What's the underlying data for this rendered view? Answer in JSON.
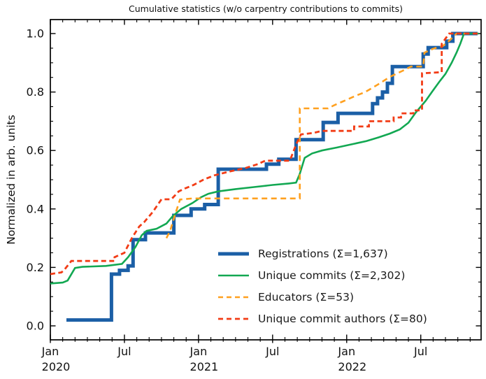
{
  "title": "Cumulative statistics (w/o carpentry contributions to commits)",
  "ylabel": "Normalized in arb. units",
  "legend": {
    "items": [
      {
        "id": "registrations",
        "label": "Registrations  (Σ=1,637)",
        "color": "#1b5fa6",
        "width": 5,
        "dash": ""
      },
      {
        "id": "unique-commits",
        "label": "Unique commits (Σ=2,302)",
        "color": "#12a852",
        "width": 2.6,
        "dash": ""
      },
      {
        "id": "educators",
        "label": "Educators (Σ=53)",
        "color": "#ffa01f",
        "width": 2.6,
        "dash": "7 5"
      },
      {
        "id": "unique-commit-authors",
        "label": "Unique commit authors (Σ=80)",
        "color": "#f23c16",
        "width": 2.8,
        "dash": "7 5"
      }
    ]
  },
  "chart_data": {
    "type": "line",
    "title": "Cumulative statistics (w/o carpentry contributions to commits)",
    "xlabel": "",
    "ylabel": "Normalized in arb. units",
    "x_unit": "months since 2020-01-01",
    "xlim": [
      0,
      34.9
    ],
    "ylim": [
      0,
      1.0
    ],
    "grid": false,
    "legend_position": "lower right inside",
    "x_major_ticks": [
      {
        "m": 0,
        "label": "Jan",
        "year": "2020"
      },
      {
        "m": 6,
        "label": "Jul",
        "year": ""
      },
      {
        "m": 12,
        "label": "Jan",
        "year": "2021"
      },
      {
        "m": 18,
        "label": "Jul",
        "year": ""
      },
      {
        "m": 24,
        "label": "Jan",
        "year": "2022"
      },
      {
        "m": 30,
        "label": "Jul",
        "year": ""
      }
    ],
    "x_minor_step": 1,
    "y_major_ticks": [
      0.0,
      0.2,
      0.4,
      0.6,
      0.8,
      1.0
    ],
    "y_minor_step": 0.05,
    "series": [
      {
        "id": "registrations",
        "name": "Registrations  (Σ=1,637)",
        "total": "1,637",
        "color": "#1b5fa6",
        "width": 5,
        "dash": "",
        "points": [
          [
            1.3,
            0.02
          ],
          [
            4.95,
            0.02
          ],
          [
            4.95,
            0.177
          ],
          [
            5.6,
            0.177
          ],
          [
            5.6,
            0.19
          ],
          [
            6.3,
            0.19
          ],
          [
            6.3,
            0.205
          ],
          [
            6.7,
            0.205
          ],
          [
            6.7,
            0.295
          ],
          [
            7.7,
            0.295
          ],
          [
            7.7,
            0.318
          ],
          [
            10.0,
            0.318
          ],
          [
            10.0,
            0.378
          ],
          [
            11.4,
            0.378
          ],
          [
            11.4,
            0.4
          ],
          [
            12.5,
            0.4
          ],
          [
            12.5,
            0.415
          ],
          [
            13.6,
            0.415
          ],
          [
            13.6,
            0.536
          ],
          [
            17.5,
            0.536
          ],
          [
            17.5,
            0.553
          ],
          [
            18.5,
            0.553
          ],
          [
            18.5,
            0.57
          ],
          [
            19.9,
            0.57
          ],
          [
            19.9,
            0.637
          ],
          [
            22.1,
            0.637
          ],
          [
            22.1,
            0.696
          ],
          [
            23.3,
            0.696
          ],
          [
            23.3,
            0.727
          ],
          [
            26.1,
            0.727
          ],
          [
            26.1,
            0.76
          ],
          [
            26.5,
            0.76
          ],
          [
            26.5,
            0.78
          ],
          [
            26.9,
            0.78
          ],
          [
            26.9,
            0.8
          ],
          [
            27.3,
            0.8
          ],
          [
            27.3,
            0.83
          ],
          [
            27.7,
            0.83
          ],
          [
            27.7,
            0.887
          ],
          [
            30.2,
            0.887
          ],
          [
            30.2,
            0.93
          ],
          [
            30.6,
            0.93
          ],
          [
            30.6,
            0.952
          ],
          [
            32.1,
            0.952
          ],
          [
            32.1,
            0.974
          ],
          [
            32.6,
            0.974
          ],
          [
            32.6,
            1.0
          ],
          [
            34.6,
            1.0
          ]
        ]
      },
      {
        "id": "unique-commits",
        "name": "Unique commits (Σ=2,302)",
        "total": "2,302",
        "color": "#12a852",
        "width": 2.6,
        "dash": "",
        "points": [
          [
            0,
            0.145
          ],
          [
            1.0,
            0.148
          ],
          [
            1.4,
            0.155
          ],
          [
            2.0,
            0.198
          ],
          [
            2.6,
            0.202
          ],
          [
            4.5,
            0.205
          ],
          [
            5.8,
            0.212
          ],
          [
            6.3,
            0.235
          ],
          [
            6.9,
            0.27
          ],
          [
            7.4,
            0.31
          ],
          [
            7.8,
            0.325
          ],
          [
            8.6,
            0.332
          ],
          [
            9.4,
            0.35
          ],
          [
            9.9,
            0.375
          ],
          [
            10.6,
            0.4
          ],
          [
            11.5,
            0.42
          ],
          [
            12.2,
            0.44
          ],
          [
            12.8,
            0.452
          ],
          [
            13.6,
            0.46
          ],
          [
            15.0,
            0.468
          ],
          [
            16.5,
            0.475
          ],
          [
            18.0,
            0.482
          ],
          [
            19.3,
            0.487
          ],
          [
            19.9,
            0.49
          ],
          [
            20.2,
            0.52
          ],
          [
            20.6,
            0.575
          ],
          [
            21.2,
            0.59
          ],
          [
            22.0,
            0.6
          ],
          [
            23.2,
            0.61
          ],
          [
            24.5,
            0.622
          ],
          [
            25.6,
            0.632
          ],
          [
            26.6,
            0.645
          ],
          [
            27.5,
            0.658
          ],
          [
            28.3,
            0.672
          ],
          [
            29.0,
            0.695
          ],
          [
            29.6,
            0.73
          ],
          [
            30.0,
            0.75
          ],
          [
            30.4,
            0.77
          ],
          [
            30.9,
            0.8
          ],
          [
            31.5,
            0.835
          ],
          [
            32.0,
            0.862
          ],
          [
            32.5,
            0.9
          ],
          [
            32.9,
            0.935
          ],
          [
            33.2,
            0.965
          ],
          [
            33.5,
            1.0
          ],
          [
            34.7,
            1.0
          ]
        ]
      },
      {
        "id": "educators",
        "name": "Educators (Σ=53)",
        "total": "53",
        "color": "#ffa01f",
        "width": 2.6,
        "dash": "8 5.5",
        "points": [
          [
            9.4,
            0.3
          ],
          [
            9.7,
            0.325
          ],
          [
            10.1,
            0.38
          ],
          [
            10.5,
            0.432
          ],
          [
            11.5,
            0.436
          ],
          [
            20.2,
            0.436
          ],
          [
            20.2,
            0.744
          ],
          [
            22.5,
            0.744
          ],
          [
            23.0,
            0.755
          ],
          [
            23.7,
            0.768
          ],
          [
            24.6,
            0.785
          ],
          [
            25.5,
            0.8
          ],
          [
            26.5,
            0.825
          ],
          [
            27.5,
            0.852
          ],
          [
            28.5,
            0.872
          ],
          [
            29.2,
            0.887
          ],
          [
            30.2,
            0.887
          ],
          [
            30.3,
            0.935
          ],
          [
            31.0,
            0.948
          ],
          [
            31.8,
            0.958
          ],
          [
            32.3,
            0.975
          ],
          [
            32.9,
            1.0
          ],
          [
            34.6,
            1.0
          ]
        ]
      },
      {
        "id": "unique-commit-authors",
        "name": "Unique commit authors (Σ=80)",
        "total": "80",
        "color": "#f23c16",
        "width": 2.8,
        "dash": "7 4.5",
        "points": [
          [
            0,
            0.177
          ],
          [
            0.9,
            0.183
          ],
          [
            1.1,
            0.19
          ],
          [
            1.7,
            0.222
          ],
          [
            5.2,
            0.222
          ],
          [
            5.2,
            0.235
          ],
          [
            6.0,
            0.25
          ],
          [
            6.6,
            0.3
          ],
          [
            7.2,
            0.34
          ],
          [
            7.6,
            0.355
          ],
          [
            8.3,
            0.39
          ],
          [
            9.0,
            0.433
          ],
          [
            9.8,
            0.433
          ],
          [
            10.4,
            0.46
          ],
          [
            10.9,
            0.47
          ],
          [
            11.6,
            0.482
          ],
          [
            12.4,
            0.5
          ],
          [
            13.3,
            0.515
          ],
          [
            14.5,
            0.528
          ],
          [
            15.8,
            0.54
          ],
          [
            16.8,
            0.553
          ],
          [
            17.4,
            0.565
          ],
          [
            19.4,
            0.565
          ],
          [
            19.9,
            0.62
          ],
          [
            20.3,
            0.655
          ],
          [
            21.3,
            0.66
          ],
          [
            22.0,
            0.667
          ],
          [
            24.6,
            0.667
          ],
          [
            24.6,
            0.682
          ],
          [
            25.8,
            0.682
          ],
          [
            25.8,
            0.7
          ],
          [
            27.8,
            0.7
          ],
          [
            27.8,
            0.713
          ],
          [
            28.4,
            0.713
          ],
          [
            28.4,
            0.727
          ],
          [
            29.4,
            0.727
          ],
          [
            29.4,
            0.737
          ],
          [
            30.1,
            0.737
          ],
          [
            30.1,
            0.864
          ],
          [
            31.7,
            0.868
          ],
          [
            31.7,
            0.965
          ],
          [
            32.3,
            1.0
          ],
          [
            34.6,
            1.0
          ]
        ]
      }
    ]
  }
}
